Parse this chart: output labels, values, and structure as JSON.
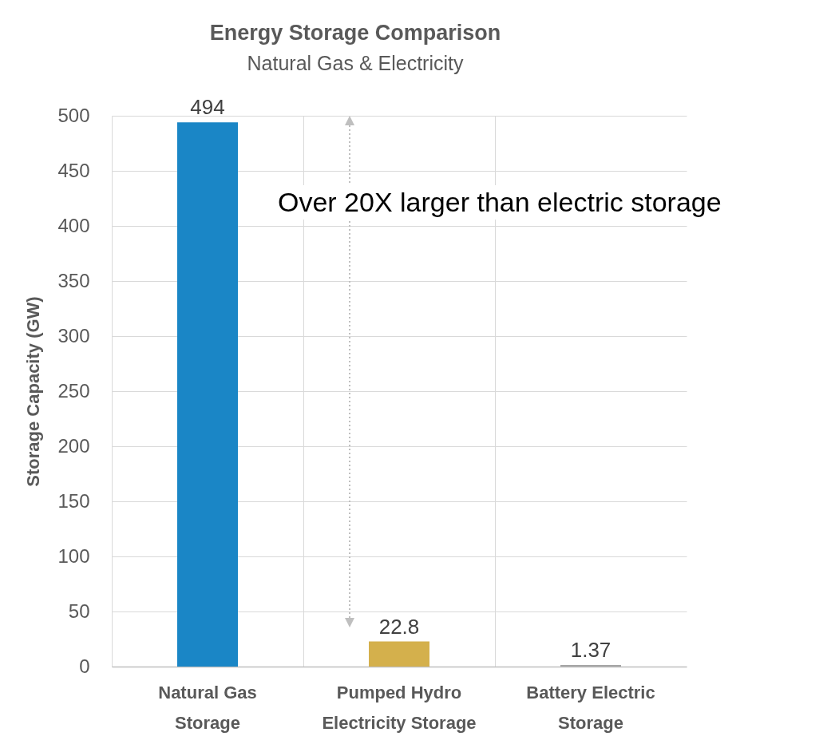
{
  "chart_data": {
    "type": "bar",
    "title": "Energy Storage Comparison",
    "subtitle": "Natural Gas & Electricity",
    "ylabel": "Storage Capacity (GW)",
    "categories": [
      "Natural Gas\nStorage",
      "Pumped Hydro\nElectricity Storage",
      "Battery Electric\nStorage"
    ],
    "values": [
      494,
      22.8,
      1.37
    ],
    "colors": [
      "#1a86c6",
      "#d4b04c",
      "#a5a5a5"
    ],
    "ylim": [
      0,
      500
    ],
    "yticks": [
      0,
      50,
      100,
      150,
      200,
      250,
      300,
      350,
      400,
      450,
      500
    ],
    "grid": true,
    "data_labels": true,
    "annotations": [
      "Over 20X larger than electric storage"
    ]
  }
}
